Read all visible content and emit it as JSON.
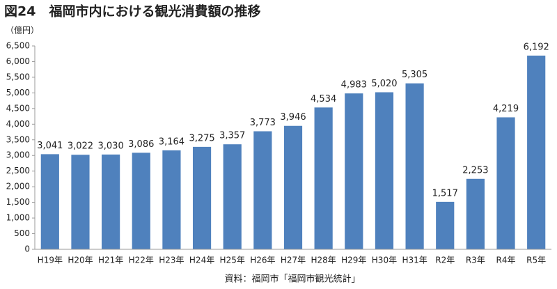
{
  "chart_data": {
    "type": "bar",
    "title": "図24　福岡市内における観光消費額の推移",
    "y_label": "（億円）",
    "source": "資料：福岡市「福岡市観光統計」",
    "categories": [
      "H19年",
      "H20年",
      "H21年",
      "H22年",
      "H23年",
      "H24年",
      "H25年",
      "H26年",
      "H27年",
      "H28年",
      "H29年",
      "H30年",
      "H31年",
      "R2年",
      "R3年",
      "R4年",
      "R5年"
    ],
    "values": [
      3041,
      3022,
      3030,
      3086,
      3164,
      3275,
      3357,
      3773,
      3946,
      4534,
      4983,
      5020,
      5305,
      1517,
      2253,
      4219,
      6192
    ],
    "value_labels": [
      "3,041",
      "3,022",
      "3,030",
      "3,086",
      "3,164",
      "3,275",
      "3,357",
      "3,773",
      "3,946",
      "4,534",
      "4,983",
      "5,020",
      "5,305",
      "1,517",
      "2,253",
      "4,219",
      "6,192"
    ],
    "color": "#4f81bd",
    "ylim": [
      0,
      6500
    ],
    "yticks": [
      0,
      500,
      {
        "value": 1000,
        "label": "1,000"
      },
      {
        "value": 1500,
        "label": "1,500"
      },
      {
        "value": 2000,
        "label": "2,000"
      },
      {
        "value": 2500,
        "label": "2,500"
      },
      {
        "value": 3000,
        "label": "3,000"
      },
      {
        "value": 3500,
        "label": "3,500"
      },
      {
        "value": 4000,
        "label": "4,000"
      },
      {
        "value": 4500,
        "label": "4,500"
      },
      {
        "value": 5000,
        "label": "5,000"
      },
      {
        "value": 5500,
        "label": "5,500"
      },
      {
        "value": 6000,
        "label": "6,000"
      },
      {
        "value": 6500,
        "label": "6,500"
      }
    ],
    "grid": false
  }
}
